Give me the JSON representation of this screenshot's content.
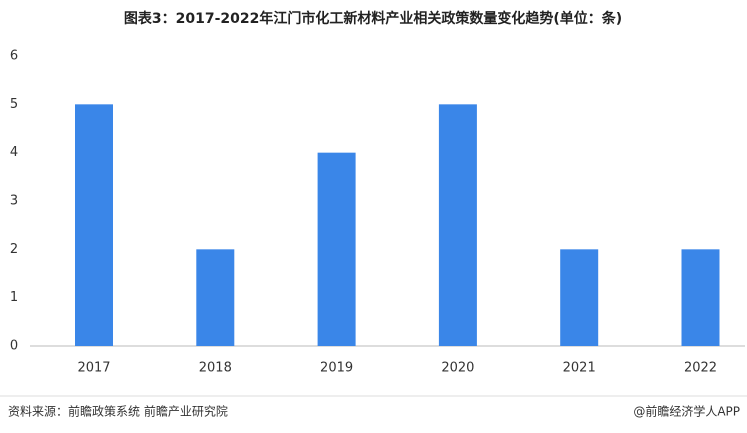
{
  "chart_data": {
    "type": "bar",
    "title": "图表3：2017-2022年江门市化工新材料产业相关政策数量变化趋势(单位：条)",
    "categories": [
      "2017",
      "2018",
      "2019",
      "2020",
      "2021",
      "2022"
    ],
    "values": [
      5,
      2,
      4,
      5,
      2,
      2
    ],
    "color": "#3a86e8",
    "ylim": [
      0,
      6
    ],
    "yticks": [
      0,
      1,
      2,
      3,
      4,
      5,
      6
    ],
    "grid": false,
    "source": "资料来源：前瞻政策系统 前瞻产业研究院",
    "credit": "@前瞻经济学人APP"
  }
}
